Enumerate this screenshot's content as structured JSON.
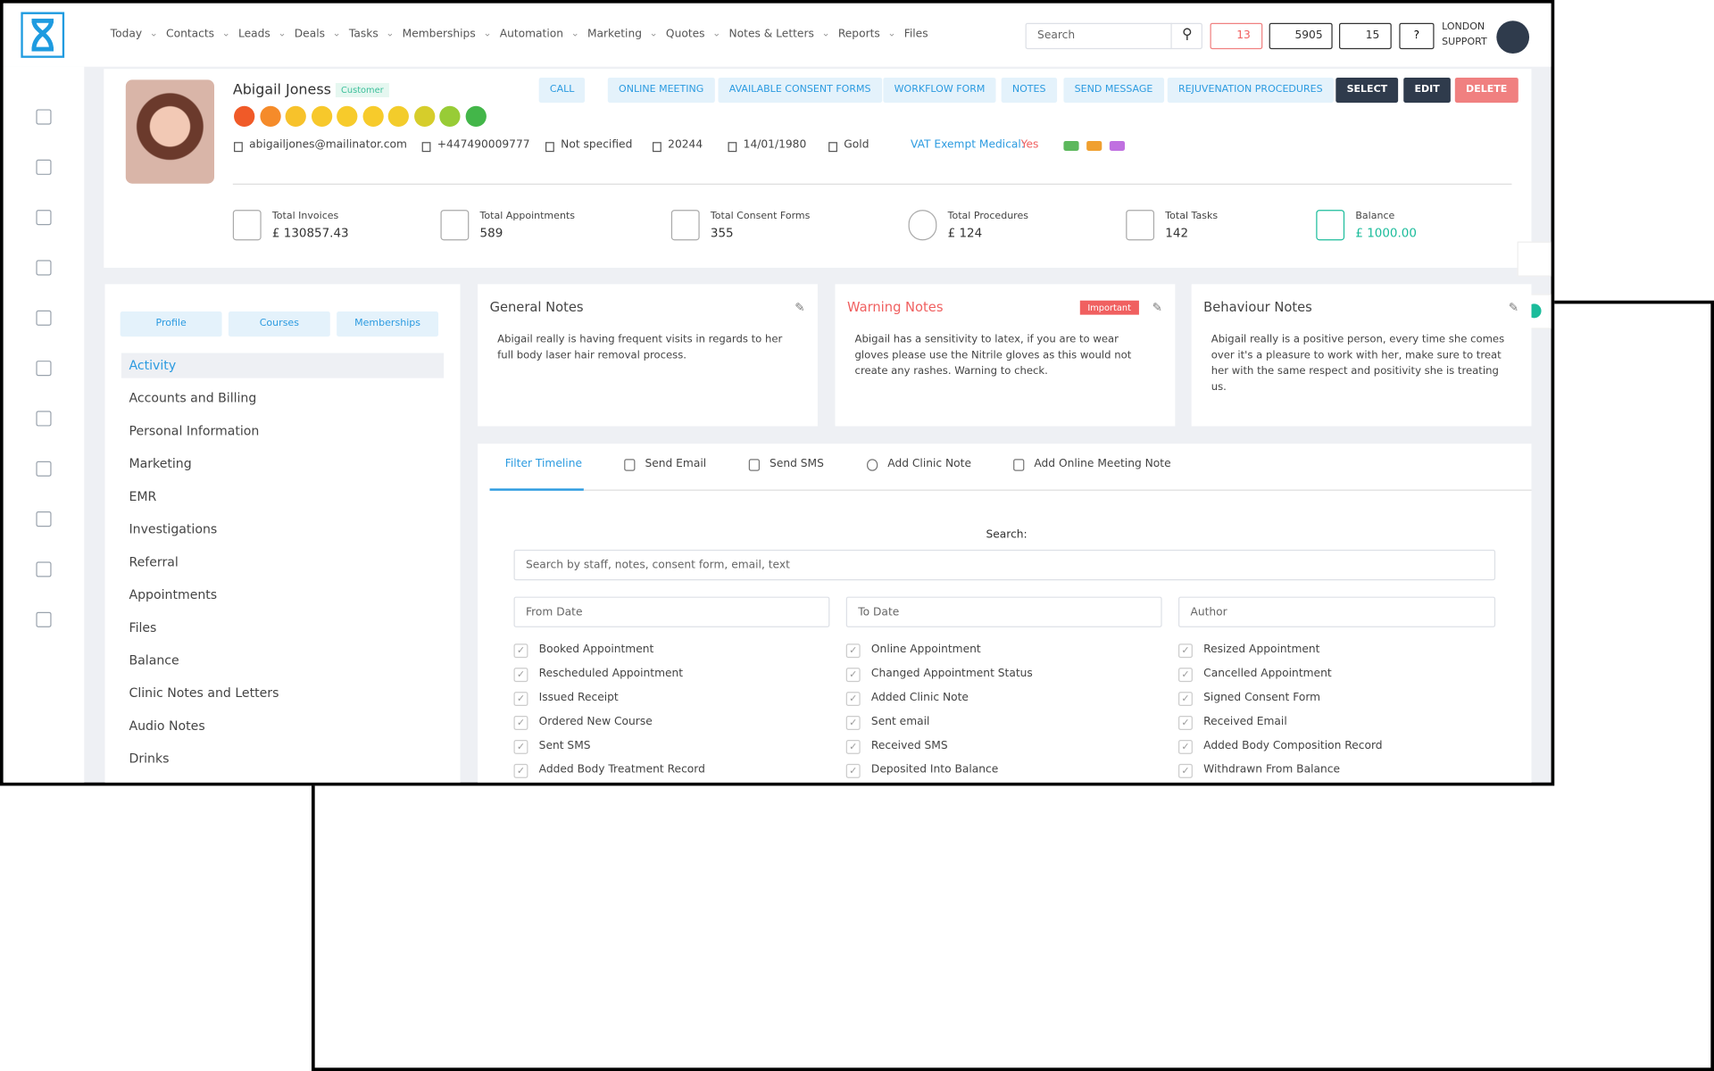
{
  "nav": {
    "items": [
      "Today",
      "Contacts",
      "Leads",
      "Deals",
      "Tasks",
      "Memberships",
      "Automation",
      "Marketing",
      "Quotes",
      "Notes & Letters",
      "Reports",
      "Files"
    ],
    "search": "Search",
    "mail": "13",
    "phone": "5905",
    "tasks": "15",
    "user": [
      "LONDON",
      "SUPPORT"
    ]
  },
  "profile": {
    "name": "Abigail Joness",
    "tag": "Customer",
    "email": "abigailjones@mailinator.com",
    "phone": "+447490009777",
    "gender": "Not specified",
    "id": "20244",
    "dob": "14/01/1980",
    "tier": "Gold",
    "vat_label": "VAT Exempt Medical:",
    "vat_value": "Yes",
    "actions": [
      "CALL",
      "ONLINE MEETING",
      "AVAILABLE CONSENT FORMS",
      "WORKFLOW FORM",
      "NOTES",
      "SEND MESSAGE",
      "REJUVENATION PROCEDURES",
      "SELECT",
      "EDIT",
      "DELETE"
    ],
    "stats": [
      {
        "label": "Total Invoices",
        "value": "£ 130857.43"
      },
      {
        "label": "Total Appointments",
        "value": "589"
      },
      {
        "label": "Total Consent Forms",
        "value": "355"
      },
      {
        "label": "Total Procedures",
        "value": "£ 124"
      },
      {
        "label": "Total Tasks",
        "value": "142"
      },
      {
        "label": "Balance",
        "value": "£ 1000.00"
      }
    ]
  },
  "sidebar": {
    "tabs": [
      "Profile",
      "Courses",
      "Memberships"
    ],
    "menu": [
      "Activity",
      "Accounts and Billing",
      "Personal Information",
      "Marketing",
      "EMR",
      "Investigations",
      "Referral",
      "Appointments",
      "Files",
      "Balance",
      "Clinic Notes and Letters",
      "Audio Notes",
      "Drinks"
    ]
  },
  "notes": [
    {
      "title": "General Notes",
      "body": "Abigail really is having frequent visits in regards to her full body laser hair removal process."
    },
    {
      "title": "Warning Notes",
      "badge": "Important",
      "body": "Abigail has a sensitivity to latex, if you are to wear gloves please use the Nitrile gloves as this would not create any rashes. Warning to check."
    },
    {
      "title": "Behaviour Notes",
      "body": "Abigail really is a positive person, every time she comes over it's a pleasure to work with her, make sure to treat her with the same respect and positivity she is treating us."
    }
  ],
  "timeline": {
    "tabs": [
      "Filter Timeline",
      "Send Email",
      "Send SMS",
      "Add Clinic Note",
      "Add Online Meeting Note"
    ],
    "search_label": "Search:",
    "search_placeholder": "Search by staff, notes, consent form, email, text",
    "from": "From Date",
    "to": "To Date",
    "author": "Author",
    "filters": [
      "Booked Appointment",
      "Online Appointment",
      "Resized Appointment",
      "Rescheduled Appointment",
      "Changed Appointment Status",
      "Cancelled Appointment",
      "Issued Receipt",
      "Added Clinic Note",
      "Signed Consent Form",
      "Ordered New Course",
      "Sent email",
      "Received Email",
      "Sent SMS",
      "Received SMS",
      "Added Body Composition Record",
      "Added Body Treatment Record",
      "Deposited Into Balance",
      "Withdrawn From Balance"
    ]
  }
}
